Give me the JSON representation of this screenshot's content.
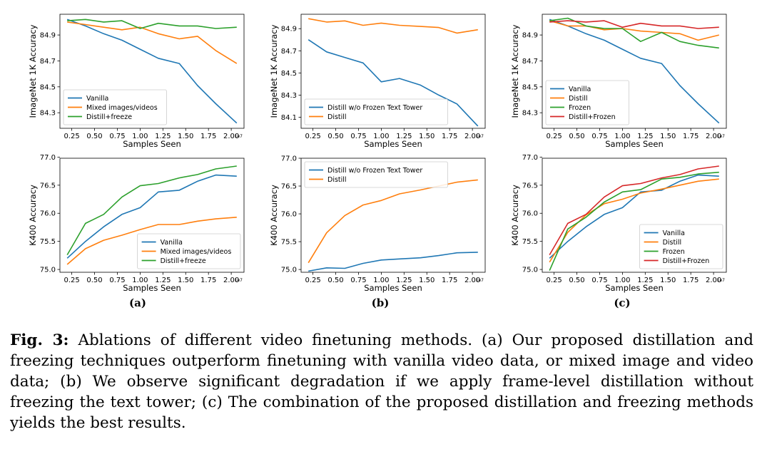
{
  "colors": {
    "blue": "#1f77b4",
    "orange": "#ff7f0e",
    "green": "#2ca02c",
    "red": "#d62728"
  },
  "panel_labels": [
    "(a)",
    "(b)",
    "(c)"
  ],
  "caption": {
    "lead": "Fig. 3:",
    "text": "Ablations of different video finetuning methods. (a) Our proposed distillation and freezing techniques outperform finetuning with vanilla video data, or mixed image and video data; (b) We observe significant degradation if we apply frame-level distillation without freezing the text tower; (c) The combination of the proposed distillation and freezing methods yields the best results."
  },
  "chart_data": [
    {
      "id": "a-top",
      "type": "line",
      "xlabel": "Samples Seen",
      "ylabel": "ImageNet 1K Accuracy",
      "x_exponent": "1e7",
      "xlim": [
        0.12,
        2.14
      ],
      "ylim": [
        84.18,
        85.06
      ],
      "xticks": [
        "0.25",
        "0.50",
        "0.75",
        "1.00",
        "1.25",
        "1.50",
        "1.75",
        "2.00"
      ],
      "yticks": [
        "84.3",
        "84.5",
        "84.7",
        "84.9"
      ],
      "legend_position": "lower-left",
      "x": [
        0.2,
        0.4,
        0.6,
        0.8,
        1.0,
        1.2,
        1.43,
        1.63,
        1.83,
        2.06
      ],
      "series": [
        {
          "name": "Vanilla",
          "color": "blue",
          "values": [
            85.02,
            84.97,
            84.91,
            84.86,
            84.79,
            84.72,
            84.68,
            84.51,
            84.37,
            84.22
          ]
        },
        {
          "name": "Mixed images/videos",
          "color": "orange",
          "values": [
            85.0,
            84.98,
            84.96,
            84.94,
            84.96,
            84.91,
            84.87,
            84.89,
            84.78,
            84.68
          ]
        },
        {
          "name": "Distill+freeze",
          "color": "green",
          "values": [
            85.01,
            85.02,
            85.0,
            85.01,
            84.95,
            84.99,
            84.97,
            84.97,
            84.95,
            84.96
          ]
        }
      ]
    },
    {
      "id": "b-top",
      "type": "line",
      "xlabel": "Samples Seen",
      "ylabel": "ImageNet 1K Accuracy",
      "x_exponent": "1e7",
      "xlim": [
        0.12,
        2.14
      ],
      "ylim": [
        84.0,
        85.03
      ],
      "xticks": [
        "0.25",
        "0.50",
        "0.75",
        "1.00",
        "1.25",
        "1.50",
        "1.75",
        "2.00"
      ],
      "yticks": [
        "84.1",
        "84.3",
        "84.5",
        "84.7",
        "84.9"
      ],
      "legend_position": "lower-left",
      "x": [
        0.2,
        0.4,
        0.6,
        0.8,
        1.0,
        1.2,
        1.43,
        1.63,
        1.83,
        2.06
      ],
      "series": [
        {
          "name": "Distill w/o Frozen Text Tower",
          "color": "blue",
          "values": [
            84.8,
            84.69,
            84.64,
            84.59,
            84.42,
            84.45,
            84.39,
            84.3,
            84.22,
            84.02
          ]
        },
        {
          "name": "Distill",
          "color": "orange",
          "values": [
            84.99,
            84.96,
            84.97,
            84.93,
            84.95,
            84.93,
            84.92,
            84.91,
            84.86,
            84.89
          ]
        }
      ]
    },
    {
      "id": "c-top",
      "type": "line",
      "xlabel": "Samples Seen",
      "ylabel": "ImageNet 1K Accuracy",
      "x_exponent": "1e7",
      "xlim": [
        0.12,
        2.14
      ],
      "ylim": [
        84.18,
        85.06
      ],
      "xticks": [
        "0.25",
        "0.50",
        "0.75",
        "1.00",
        "1.25",
        "1.50",
        "1.75",
        "2.00"
      ],
      "yticks": [
        "84.3",
        "84.5",
        "84.7",
        "84.9"
      ],
      "legend_position": "lower-left",
      "x": [
        0.2,
        0.4,
        0.6,
        0.8,
        1.0,
        1.2,
        1.43,
        1.63,
        1.83,
        2.06
      ],
      "series": [
        {
          "name": "Vanilla",
          "color": "blue",
          "values": [
            85.02,
            84.97,
            84.91,
            84.86,
            84.79,
            84.72,
            84.68,
            84.51,
            84.37,
            84.22
          ]
        },
        {
          "name": "Distill",
          "color": "orange",
          "values": [
            85.01,
            84.97,
            84.97,
            84.94,
            84.95,
            84.93,
            84.92,
            84.91,
            84.86,
            84.9
          ]
        },
        {
          "name": "Frozen",
          "color": "green",
          "values": [
            85.01,
            85.03,
            84.97,
            84.95,
            84.95,
            84.85,
            84.92,
            84.85,
            84.82,
            84.8
          ]
        },
        {
          "name": "Distill+Frozen",
          "color": "red",
          "values": [
            85.0,
            85.01,
            85.0,
            85.01,
            84.96,
            84.99,
            84.97,
            84.97,
            84.95,
            84.96
          ]
        }
      ]
    },
    {
      "id": "a-bottom",
      "type": "line",
      "xlabel": "Samples Seen",
      "ylabel": "K400 Accuracy",
      "x_exponent": "1e7",
      "xlim": [
        0.12,
        2.14
      ],
      "ylim": [
        74.95,
        76.98
      ],
      "xticks": [
        "0.25",
        "0.50",
        "0.75",
        "1.00",
        "1.25",
        "1.50",
        "1.75",
        "2.00"
      ],
      "yticks": [
        "75.0",
        "75.5",
        "76.0",
        "76.5",
        "77.0"
      ],
      "legend_position": "lower-right",
      "x": [
        0.2,
        0.4,
        0.6,
        0.8,
        1.0,
        1.2,
        1.43,
        1.63,
        1.83,
        2.06
      ],
      "series": [
        {
          "name": "Vanilla",
          "color": "blue",
          "values": [
            75.2,
            75.5,
            75.76,
            75.98,
            76.1,
            76.38,
            76.41,
            76.57,
            76.68,
            76.66
          ]
        },
        {
          "name": "Mixed images/videos",
          "color": "orange",
          "values": [
            75.09,
            75.37,
            75.52,
            75.61,
            75.71,
            75.8,
            75.8,
            75.86,
            75.9,
            75.93
          ]
        },
        {
          "name": "Distill+freeze",
          "color": "green",
          "values": [
            75.26,
            75.82,
            75.98,
            76.29,
            76.49,
            76.53,
            76.63,
            76.69,
            76.79,
            76.84
          ]
        }
      ]
    },
    {
      "id": "b-bottom",
      "type": "line",
      "xlabel": "Samples Seen",
      "ylabel": "K400 Accuracy",
      "x_exponent": "1e7",
      "xlim": [
        0.12,
        2.14
      ],
      "ylim": [
        74.95,
        77.0
      ],
      "xticks": [
        "0.25",
        "0.50",
        "0.75",
        "1.00",
        "1.25",
        "1.50",
        "1.75",
        "2.00"
      ],
      "yticks": [
        "75.0",
        "75.5",
        "76.0",
        "76.5",
        "77.0"
      ],
      "legend_position": "top-left",
      "x": [
        0.2,
        0.4,
        0.6,
        0.8,
        1.0,
        1.2,
        1.43,
        1.63,
        1.83,
        2.06
      ],
      "series": [
        {
          "name": "Distill w/o Frozen Text Tower",
          "color": "blue",
          "values": [
            74.97,
            75.03,
            75.02,
            75.11,
            75.17,
            75.19,
            75.21,
            75.25,
            75.3,
            75.31
          ]
        },
        {
          "name": "Distill",
          "color": "orange",
          "values": [
            75.12,
            75.66,
            75.97,
            76.16,
            76.24,
            76.36,
            76.43,
            76.5,
            76.57,
            76.61
          ]
        }
      ]
    },
    {
      "id": "c-bottom",
      "type": "line",
      "xlabel": "Samples Seen",
      "ylabel": "K400 Accuracy",
      "x_exponent": "1e7",
      "xlim": [
        0.12,
        2.14
      ],
      "ylim": [
        74.95,
        76.98
      ],
      "xticks": [
        "0.25",
        "0.50",
        "0.75",
        "1.00",
        "1.25",
        "1.50",
        "1.75",
        "2.00"
      ],
      "yticks": [
        "75.0",
        "75.5",
        "76.0",
        "76.5",
        "77.0"
      ],
      "legend_position": "lower-right",
      "x": [
        0.2,
        0.4,
        0.6,
        0.8,
        1.0,
        1.2,
        1.43,
        1.63,
        1.83,
        2.06
      ],
      "series": [
        {
          "name": "Vanilla",
          "color": "blue",
          "values": [
            75.2,
            75.5,
            75.76,
            75.98,
            76.1,
            76.38,
            76.41,
            76.57,
            76.68,
            76.66
          ]
        },
        {
          "name": "Distill",
          "color": "orange",
          "values": [
            75.13,
            75.66,
            75.97,
            76.17,
            76.25,
            76.36,
            76.43,
            76.5,
            76.57,
            76.61
          ]
        },
        {
          "name": "Frozen",
          "color": "green",
          "values": [
            74.98,
            75.72,
            75.93,
            76.2,
            76.38,
            76.42,
            76.61,
            76.64,
            76.7,
            76.73
          ]
        },
        {
          "name": "Distill+Frozen",
          "color": "red",
          "values": [
            75.26,
            75.82,
            75.98,
            76.29,
            76.49,
            76.53,
            76.63,
            76.69,
            76.79,
            76.84
          ]
        }
      ]
    }
  ]
}
